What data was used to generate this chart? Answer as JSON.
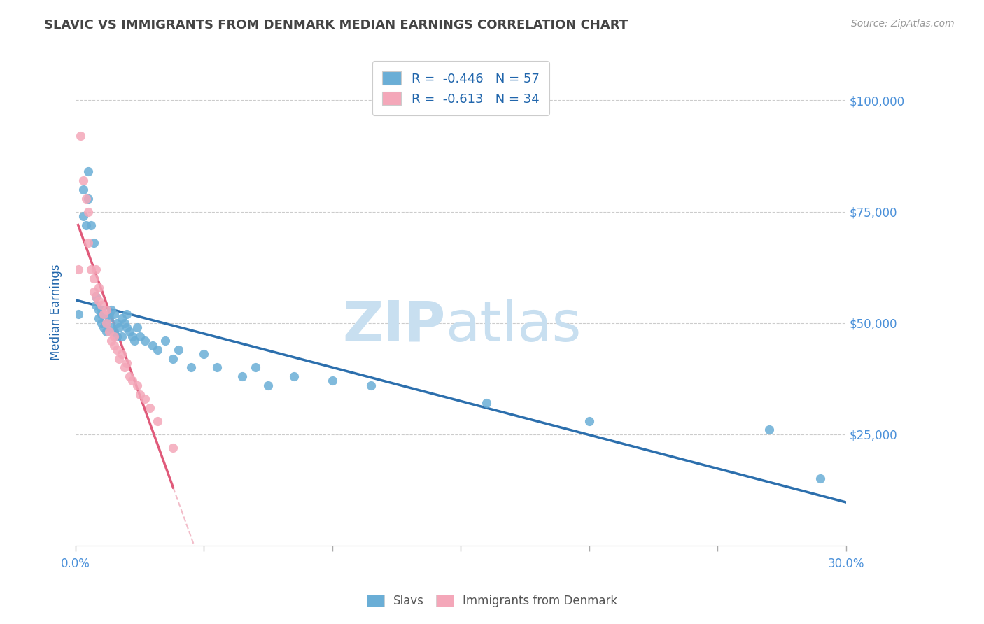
{
  "title": "SLAVIC VS IMMIGRANTS FROM DENMARK MEDIAN EARNINGS CORRELATION CHART",
  "source_text": "Source: ZipAtlas.com",
  "ylabel": "Median Earnings",
  "xlim": [
    0.0,
    0.3
  ],
  "ylim": [
    0,
    105000
  ],
  "xtick_positions": [
    0.0,
    0.05,
    0.1,
    0.15,
    0.2,
    0.25,
    0.3
  ],
  "xtick_labels_shown": [
    "0.0%",
    "",
    "",
    "",
    "",
    "",
    "30.0%"
  ],
  "yticks": [
    0,
    25000,
    50000,
    75000,
    100000
  ],
  "ytick_labels": [
    "",
    "$25,000",
    "$50,000",
    "$75,000",
    "$100,000"
  ],
  "slavs_R": -0.446,
  "slavs_N": 57,
  "denmark_R": -0.613,
  "denmark_N": 34,
  "slavs_color": "#6aaed6",
  "denmark_color": "#f4a7b9",
  "slavs_line_color": "#2c6fad",
  "denmark_line_color": "#e05a7a",
  "legend_text_color": "#2166ac",
  "title_color": "#444444",
  "ylabel_color": "#2166ac",
  "ytick_color": "#4a90d9",
  "xtick_color": "#4a90d9",
  "grid_color": "#cccccc",
  "watermark_zip": "ZIP",
  "watermark_atlas": "atlas",
  "watermark_color": "#c8dff0",
  "slavs_x": [
    0.001,
    0.003,
    0.003,
    0.004,
    0.005,
    0.005,
    0.006,
    0.007,
    0.008,
    0.008,
    0.009,
    0.009,
    0.01,
    0.01,
    0.01,
    0.011,
    0.011,
    0.012,
    0.012,
    0.013,
    0.013,
    0.014,
    0.014,
    0.015,
    0.015,
    0.016,
    0.016,
    0.017,
    0.018,
    0.018,
    0.019,
    0.02,
    0.02,
    0.021,
    0.022,
    0.023,
    0.024,
    0.025,
    0.027,
    0.03,
    0.032,
    0.035,
    0.038,
    0.04,
    0.045,
    0.05,
    0.055,
    0.065,
    0.07,
    0.075,
    0.085,
    0.1,
    0.115,
    0.16,
    0.2,
    0.27,
    0.29
  ],
  "slavs_y": [
    52000,
    80000,
    74000,
    72000,
    84000,
    78000,
    72000,
    68000,
    56000,
    54000,
    53000,
    51000,
    52000,
    50000,
    53000,
    49000,
    52000,
    50000,
    48000,
    52000,
    51000,
    49000,
    53000,
    52000,
    48000,
    50000,
    47000,
    49000,
    51000,
    47000,
    50000,
    49000,
    52000,
    48000,
    47000,
    46000,
    49000,
    47000,
    46000,
    45000,
    44000,
    46000,
    42000,
    44000,
    40000,
    43000,
    40000,
    38000,
    40000,
    36000,
    38000,
    37000,
    36000,
    32000,
    28000,
    26000,
    15000
  ],
  "denmark_x": [
    0.001,
    0.002,
    0.003,
    0.004,
    0.005,
    0.005,
    0.006,
    0.007,
    0.007,
    0.008,
    0.008,
    0.009,
    0.009,
    0.01,
    0.011,
    0.012,
    0.012,
    0.013,
    0.014,
    0.015,
    0.015,
    0.016,
    0.017,
    0.018,
    0.019,
    0.02,
    0.021,
    0.022,
    0.024,
    0.025,
    0.027,
    0.029,
    0.032,
    0.038
  ],
  "denmark_y": [
    62000,
    92000,
    82000,
    78000,
    75000,
    68000,
    62000,
    60000,
    57000,
    56000,
    62000,
    58000,
    55000,
    54000,
    52000,
    50000,
    53000,
    48000,
    46000,
    47000,
    45000,
    44000,
    42000,
    43000,
    40000,
    41000,
    38000,
    37000,
    36000,
    34000,
    33000,
    31000,
    28000,
    22000
  ]
}
